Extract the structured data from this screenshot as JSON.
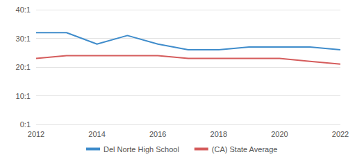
{
  "chart_data": {
    "type": "line",
    "x": [
      2012,
      2013,
      2014,
      2015,
      2016,
      2017,
      2018,
      2019,
      2020,
      2021,
      2022
    ],
    "series": [
      {
        "name": "Del Norte High School",
        "color": "#3f8ccb",
        "values": [
          32,
          32,
          28,
          31,
          28,
          26,
          26,
          27,
          27,
          27,
          26
        ]
      },
      {
        "name": "(CA) State Average",
        "color": "#d55c5c",
        "values": [
          23,
          24,
          24,
          24,
          24,
          23,
          23,
          23,
          23,
          22,
          21
        ]
      }
    ],
    "xlim": [
      2012,
      2022
    ],
    "xticks": [
      2012,
      2014,
      2016,
      2018,
      2020,
      2022
    ],
    "ylim": [
      0,
      40
    ],
    "yticks": [
      {
        "value": 0,
        "label": "0:1"
      },
      {
        "value": 10,
        "label": "10:1"
      },
      {
        "value": 20,
        "label": "20:1"
      },
      {
        "value": 30,
        "label": "30:1"
      },
      {
        "value": 40,
        "label": "40:1"
      }
    ],
    "grid": true,
    "legend": "bottom",
    "line_style": "solid",
    "marker": "none"
  }
}
